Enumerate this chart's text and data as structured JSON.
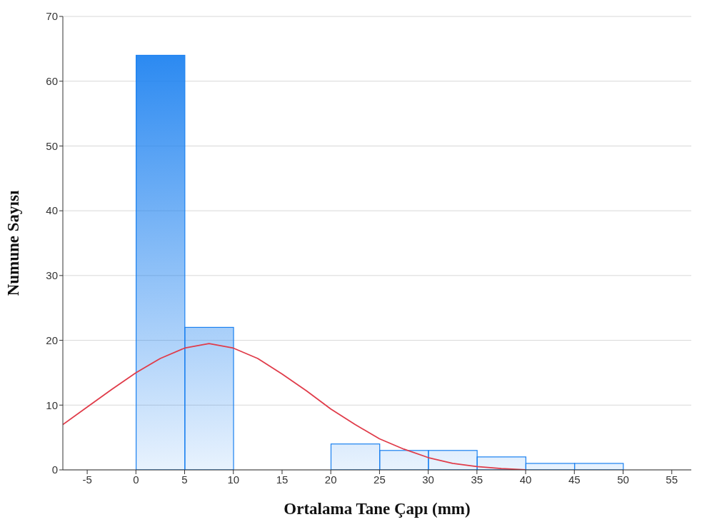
{
  "chart_data": {
    "type": "histogram",
    "xlabel": "Ortalama Tane Çapı (mm)",
    "ylabel": "Numune Sayısı",
    "bins": [
      0,
      5,
      10,
      15,
      20,
      25,
      30,
      35,
      40,
      45,
      50
    ],
    "values": [
      64,
      22,
      0,
      0,
      4,
      3,
      3,
      2,
      1,
      1
    ],
    "color": "#1a80f0",
    "series": [
      {
        "type": "line",
        "color": "#e03c4a",
        "x": [
          -7.5,
          -5,
          -2.5,
          0,
          2.5,
          5,
          7.5,
          10,
          12.5,
          15,
          17.5,
          20,
          22.5,
          25,
          27.5,
          30,
          32.5,
          35,
          37.5,
          40
        ],
        "values": [
          7,
          9.7,
          12.4,
          15,
          17.2,
          18.8,
          19.5,
          18.8,
          17.2,
          14.8,
          12.2,
          9.4,
          7,
          4.8,
          3.2,
          1.9,
          1,
          0.5,
          0.2,
          0
        ]
      }
    ],
    "marker": "none",
    "line_style": "solid",
    "xlim": [
      -7.5,
      57
    ],
    "xticks": [
      -5,
      0,
      5,
      10,
      15,
      20,
      25,
      30,
      35,
      40,
      45,
      50,
      55
    ],
    "ylim": [
      0,
      70
    ],
    "yticks": [
      0,
      10,
      20,
      30,
      40,
      50,
      60,
      70
    ],
    "grid": "y"
  }
}
